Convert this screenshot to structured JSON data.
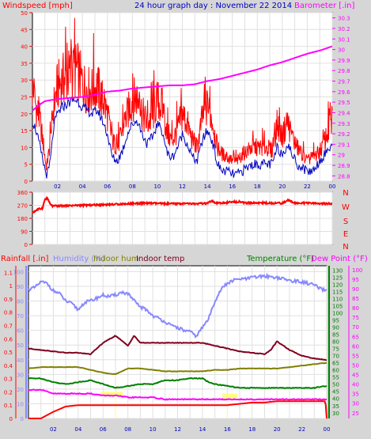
{
  "header": {
    "left_label": "Windspeed [mph]",
    "center_title": "24 hour graph day : November 22 2014",
    "right_label": "Barometer [.in]"
  },
  "bottom_header": {
    "rainfall": "Rainfall [.in]",
    "humidity": "Humidity (%)",
    "indoor_hum": "Indoor hum",
    "indoor_temp": "Indoor temp",
    "temperature": "Temperature (°F)",
    "dew_point": "Dew Point (°F)"
  },
  "colors": {
    "background": "#d6d6d6",
    "plot_bg": "#ffffff",
    "windspeed": "#ff0000",
    "windspeed_avg": "#0000c0",
    "barometer": "#ff00ff",
    "direction": "#ff0000",
    "rainfall": "#ff0000",
    "humidity": "#8888ff",
    "indoor_hum": "#808000",
    "indoor_temp": "#800020",
    "temperature": "#008000",
    "dew_point": "#ff00ff",
    "highlight": "#ffff80"
  },
  "chart_data": [
    {
      "type": "line",
      "panel": "wind-barometer",
      "x_tick_labels": [
        "02",
        "04",
        "06",
        "08",
        "10",
        "12",
        "14",
        "16",
        "18",
        "20",
        "22",
        "00"
      ],
      "y_left_ticks": [
        "0",
        "5",
        "10",
        "15",
        "20",
        "25",
        "30",
        "35",
        "40",
        "45",
        "50"
      ],
      "y_left_range": [
        0,
        50
      ],
      "y_right_ticks": [
        "28.8",
        "28.9",
        "29",
        "29.1",
        "29.2",
        "29.3",
        "29.4",
        "29.5",
        "29.6",
        "29.7",
        "29.8",
        "29.9",
        "30",
        "30.1",
        "30.2",
        "30.3"
      ],
      "y_right_range": [
        28.75,
        30.35
      ],
      "x_range_hours": [
        0,
        24
      ],
      "series": [
        {
          "name": "Windspeed",
          "axis": "left",
          "x": [
            0,
            0.3,
            0.6,
            0.9,
            1.1,
            1.3,
            1.5,
            1.7,
            2.0,
            2.4,
            2.8,
            3.2,
            3.6,
            4.0,
            4.4,
            4.8,
            5.2,
            5.6,
            6.0,
            6.4,
            6.8,
            7.2,
            7.6,
            8.0,
            8.4,
            8.8,
            9.2,
            9.6,
            10.0,
            10.4,
            10.8,
            11.2,
            11.6,
            12.0,
            12.4,
            12.8,
            13.2,
            13.6,
            14.0,
            14.4,
            14.8,
            15.2,
            15.6,
            16.0,
            16.4,
            16.8,
            17.2,
            17.6,
            18.0,
            18.4,
            18.8,
            19.2,
            19.6,
            20.0,
            20.4,
            20.8,
            21.2,
            21.6,
            22.0,
            22.4,
            22.8,
            23.2,
            23.6,
            24.0
          ],
          "values": [
            27,
            22,
            18,
            10,
            4,
            8,
            14,
            22,
            28,
            30,
            31,
            32,
            33,
            29,
            27,
            27,
            28,
            24,
            20,
            12,
            10,
            15,
            20,
            24,
            25,
            20,
            17,
            19,
            24,
            22,
            14,
            12,
            15,
            20,
            17,
            12,
            10,
            19,
            22,
            18,
            10,
            8,
            7,
            6,
            6,
            8,
            9,
            10,
            10,
            10,
            10,
            9,
            17,
            13,
            18,
            13,
            10,
            8,
            6,
            7,
            8,
            10,
            14,
            17
          ]
        },
        {
          "name": "Average windspeed",
          "axis": "left",
          "x": [
            0,
            0.3,
            0.6,
            0.9,
            1.1,
            1.3,
            1.5,
            1.7,
            2.0,
            2.4,
            2.8,
            3.2,
            3.6,
            4.0,
            4.4,
            4.8,
            5.2,
            5.6,
            6.0,
            6.4,
            6.8,
            7.2,
            7.6,
            8.0,
            8.4,
            8.8,
            9.2,
            9.6,
            10.0,
            10.4,
            10.8,
            11.2,
            11.6,
            12.0,
            12.4,
            12.8,
            13.2,
            13.6,
            14.0,
            14.4,
            14.8,
            15.2,
            15.6,
            16.0,
            16.4,
            16.8,
            17.2,
            17.6,
            18.0,
            18.4,
            18.8,
            19.2,
            19.6,
            20.0,
            20.4,
            20.8,
            21.2,
            21.6,
            22.0,
            22.4,
            22.8,
            23.2,
            23.6,
            24.0
          ],
          "values": [
            18,
            15,
            10,
            5,
            2,
            3,
            8,
            16,
            20,
            22,
            23,
            24,
            24,
            22,
            21,
            20,
            21,
            18,
            14,
            7,
            6,
            9,
            14,
            17,
            18,
            14,
            11,
            13,
            17,
            15,
            8,
            7,
            10,
            14,
            11,
            7,
            6,
            12,
            15,
            12,
            5,
            3,
            3,
            2,
            2,
            3,
            4,
            5,
            5,
            5,
            5,
            5,
            10,
            8,
            11,
            8,
            5,
            4,
            3,
            3,
            5,
            7,
            9,
            11
          ]
        },
        {
          "name": "Barometer",
          "axis": "right",
          "x": [
            0,
            0.5,
            1,
            2,
            3,
            4,
            5,
            6,
            7,
            8,
            9,
            10,
            11,
            12,
            13,
            14,
            15,
            16,
            17,
            18,
            19,
            20,
            21,
            22,
            23,
            24
          ],
          "values": [
            29.42,
            29.47,
            29.51,
            29.53,
            29.54,
            29.55,
            29.57,
            29.6,
            29.61,
            29.63,
            29.64,
            29.65,
            29.66,
            29.66,
            29.67,
            29.7,
            29.72,
            29.75,
            29.78,
            29.81,
            29.85,
            29.88,
            29.92,
            29.96,
            29.99,
            30.03
          ]
        }
      ]
    },
    {
      "type": "line",
      "panel": "wind-direction",
      "y_left_ticks": [
        "0",
        "90",
        "180",
        "270",
        "360"
      ],
      "y_range": [
        0,
        360
      ],
      "y_right_ticks": [
        "N",
        "W",
        "S",
        "E",
        "N"
      ],
      "x_tick_labels": [],
      "series": [
        {
          "name": "Wind direction",
          "x": [
            0,
            0.4,
            0.8,
            1.0,
            1.2,
            1.4,
            1.6,
            2,
            3,
            4,
            5,
            6,
            7,
            8,
            9,
            10,
            11,
            12,
            13,
            14,
            14.4,
            14.6,
            15,
            16,
            16.6,
            17,
            18,
            19,
            20,
            20.5,
            21,
            22,
            23,
            24
          ],
          "values": [
            220,
            240,
            250,
            310,
            320,
            280,
            265,
            265,
            268,
            270,
            272,
            275,
            278,
            282,
            285,
            283,
            280,
            282,
            280,
            283,
            300,
            283,
            285,
            292,
            296,
            285,
            287,
            285,
            285,
            305,
            285,
            285,
            282,
            280
          ]
        }
      ]
    },
    {
      "type": "line",
      "panel": "temperature-humidity",
      "x_tick_labels": [
        "02",
        "04",
        "06",
        "08",
        "10",
        "12",
        "14",
        "16",
        "18",
        "20",
        "22",
        "00"
      ],
      "rain_axis_ticks": [
        "0",
        "0.1",
        "0.2",
        "0.3",
        "0.4",
        "0.5",
        "0.6",
        "0.7",
        "0.8",
        "0.9",
        "1",
        "1.1"
      ],
      "rain_axis_range": [
        0,
        1.15
      ],
      "humidity_axis_ticks": [
        "0",
        "10",
        "20",
        "30",
        "40",
        "50",
        "60",
        "70",
        "80",
        "90",
        "100"
      ],
      "humidity_axis_range": [
        0,
        104
      ],
      "temp_axis_ticks": [
        "30",
        "35",
        "40",
        "45",
        "50",
        "55",
        "60",
        "65",
        "70",
        "75",
        "80",
        "85",
        "90",
        "95",
        "100",
        "105",
        "110",
        "115",
        "120",
        "125",
        "130"
      ],
      "temp_axis_range": [
        26,
        133
      ],
      "dew_axis_ticks": [
        "25",
        "30",
        "35",
        "40",
        "45",
        "50",
        "55",
        "60",
        "65",
        "70",
        "75",
        "80",
        "85",
        "90",
        "95",
        "100"
      ],
      "dew_axis_range": [
        22,
        102
      ],
      "series": [
        {
          "name": "Humidity",
          "axis": "humidity",
          "x": [
            0,
            0.5,
            1,
            1.5,
            2,
            2.5,
            3,
            3.5,
            4,
            4.5,
            5,
            5.5,
            6,
            6.5,
            7,
            7.5,
            8,
            8.5,
            9,
            9.5,
            10,
            10.5,
            11,
            11.5,
            12,
            12.5,
            13,
            13.5,
            14,
            14.5,
            15,
            15.5,
            16,
            16.5,
            17,
            17.5,
            18,
            19,
            20,
            21,
            22,
            23,
            23.5,
            24
          ],
          "values": [
            88,
            89,
            93,
            92,
            87,
            85,
            80,
            78,
            74,
            79,
            80,
            82,
            84,
            83,
            84,
            86,
            85,
            80,
            76,
            74,
            70,
            68,
            66,
            63,
            62,
            60,
            59,
            56,
            62,
            68,
            80,
            88,
            92,
            94,
            95,
            95,
            96,
            97,
            96,
            94,
            93,
            91,
            88,
            87
          ]
        },
        {
          "name": "Indoor temp",
          "axis": "temp",
          "x": [
            0,
            1,
            2,
            3,
            4,
            5,
            6,
            7,
            8,
            8.5,
            9,
            10,
            11,
            12,
            13,
            14,
            15,
            16,
            17,
            18,
            19,
            19.5,
            20,
            21,
            22,
            23,
            24
          ],
          "values": [
            75,
            74,
            73,
            72,
            72,
            71,
            79,
            84,
            77,
            84,
            79,
            79,
            79,
            79,
            79,
            79,
            77,
            75,
            73,
            72,
            71,
            74,
            80,
            74,
            70,
            68,
            67
          ]
        },
        {
          "name": "Indoor hum",
          "axis": "temp",
          "x": [
            0,
            1,
            2,
            3,
            4,
            5,
            6,
            7,
            8,
            9,
            10,
            11,
            12,
            13,
            14,
            15,
            16,
            17,
            18,
            19,
            20,
            21,
            22,
            23,
            24
          ],
          "values": [
            61,
            62,
            62,
            62,
            62,
            60,
            58,
            57,
            61,
            61,
            60,
            59,
            59,
            59,
            59,
            60,
            60,
            61,
            61,
            61,
            61,
            62,
            63,
            64,
            65
          ]
        },
        {
          "name": "Temperature",
          "axis": "dew",
          "x": [
            0,
            1,
            2,
            3,
            4,
            5,
            6,
            7,
            8,
            9,
            10,
            11,
            12,
            13,
            14,
            14.5,
            15,
            16,
            17,
            18,
            19,
            20,
            21,
            22,
            23,
            24
          ],
          "values": [
            43,
            43,
            41,
            40,
            41,
            42,
            40,
            38,
            39,
            40,
            40,
            42,
            42,
            43,
            43,
            41,
            40,
            39,
            38,
            38,
            38,
            38,
            38,
            38,
            38,
            39
          ]
        },
        {
          "name": "Dew Point",
          "axis": "dew",
          "x": [
            0,
            1,
            2,
            3,
            4,
            5,
            6,
            7,
            8,
            9,
            10,
            11,
            12,
            13,
            14,
            15,
            16,
            17,
            18,
            19,
            20,
            21,
            22,
            23,
            24
          ],
          "values": [
            37,
            37,
            35,
            35,
            35,
            35,
            34,
            34,
            33,
            33,
            33,
            32,
            32,
            32,
            32,
            32,
            32,
            32,
            32,
            32,
            32,
            32,
            32,
            32,
            32
          ]
        },
        {
          "name": "Rainfall",
          "axis": "rain",
          "x": [
            0,
            1,
            2,
            3,
            4,
            5,
            6,
            7,
            8,
            9,
            10,
            11,
            12,
            13,
            14,
            15,
            16,
            17,
            18,
            19,
            20,
            21,
            22,
            23,
            23.9,
            24
          ],
          "values": [
            0,
            0,
            0.05,
            0.09,
            0.1,
            0.1,
            0.1,
            0.1,
            0.1,
            0.1,
            0.1,
            0.1,
            0.1,
            0.1,
            0.1,
            0.1,
            0.1,
            0.11,
            0.12,
            0.12,
            0.13,
            0.13,
            0.13,
            0.13,
            0.13,
            0
          ]
        }
      ]
    }
  ]
}
